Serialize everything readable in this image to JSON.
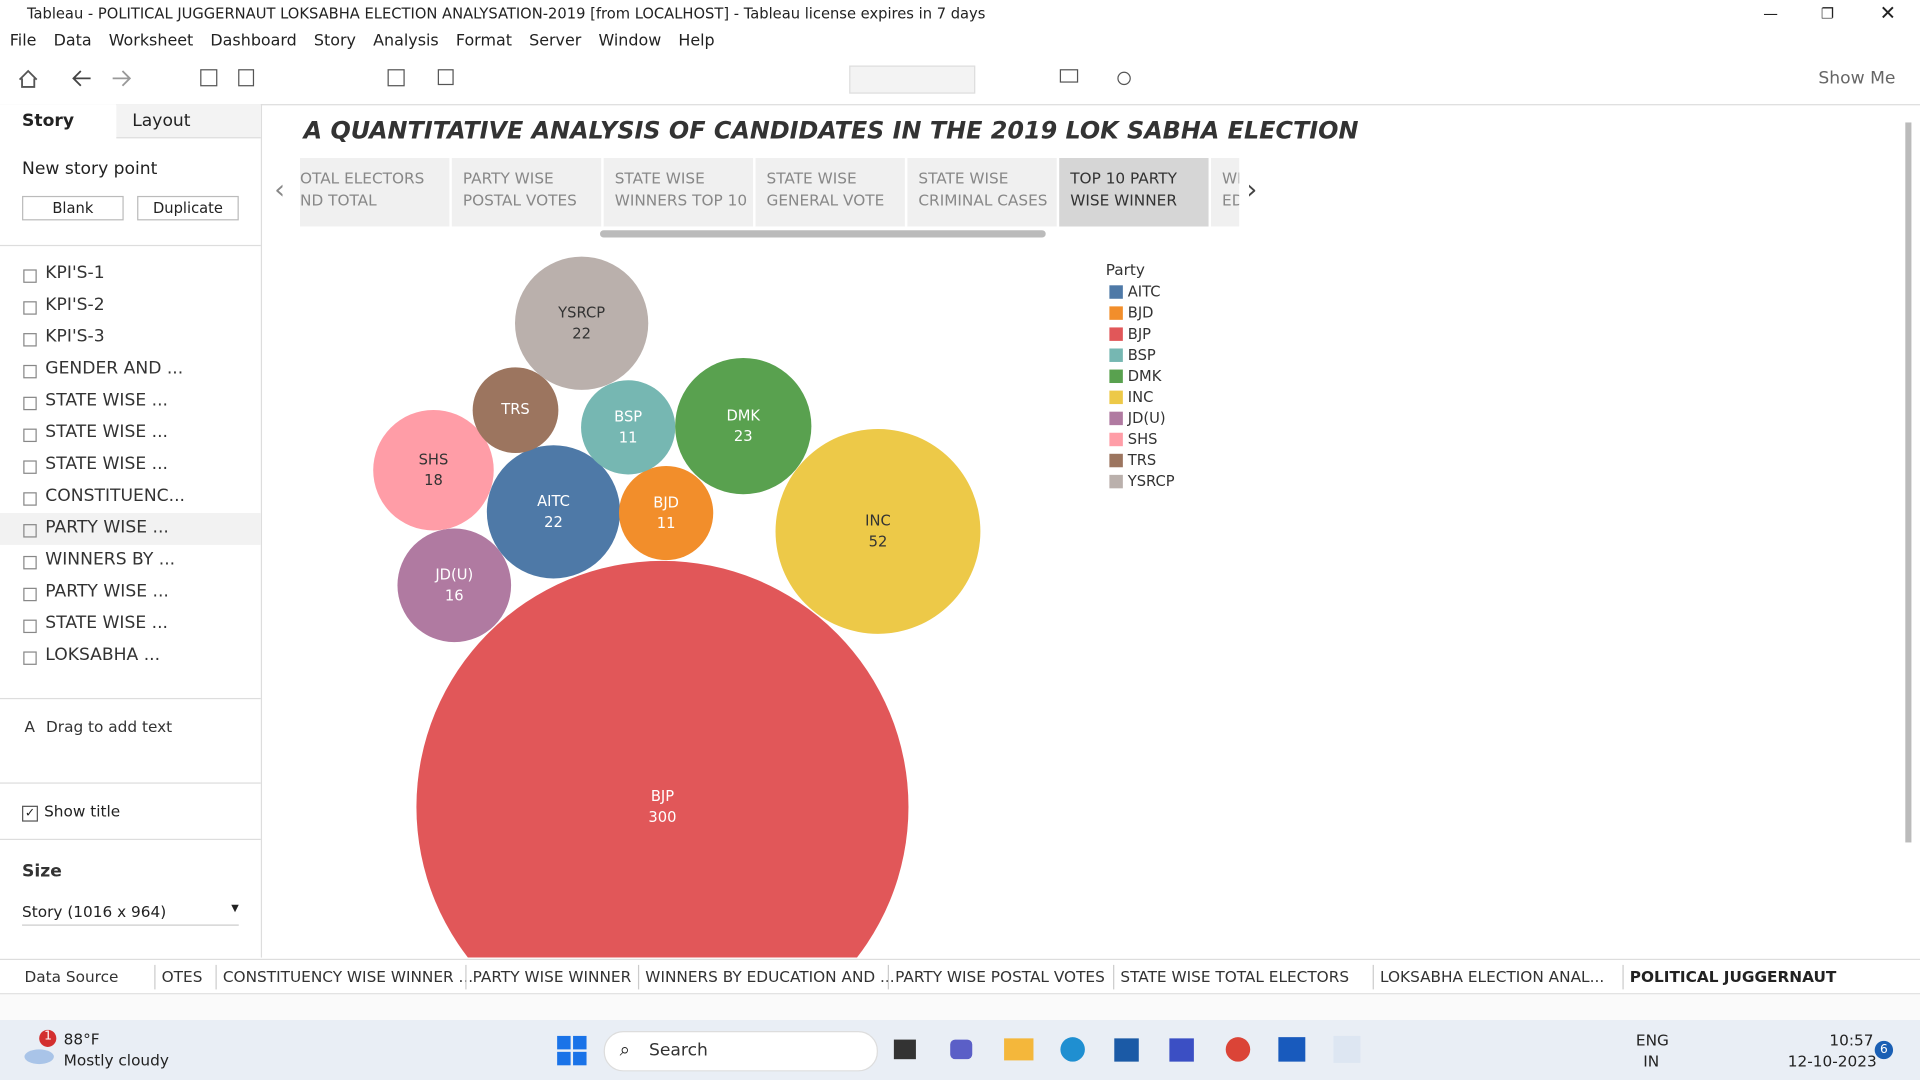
{
  "window": {
    "title": "Tableau - POLITICAL JUGGERNAUT LOKSABHA ELECTION ANALYSATION-2019 [from LOCALHOST] - Tableau license expires in 7 days"
  },
  "menu": [
    "File",
    "Data",
    "Worksheet",
    "Dashboard",
    "Story",
    "Analysis",
    "Format",
    "Server",
    "Window",
    "Help"
  ],
  "toolbar": {
    "show_me": "Show Me"
  },
  "story_panel": {
    "tabs": [
      "Story",
      "Layout"
    ],
    "new_story_point": "New story point",
    "buttons": [
      "Blank",
      "Duplicate"
    ],
    "sheets": [
      "KPI'S-1",
      "KPI'S-2",
      "KPI'S-3",
      "GENDER AND ...",
      "STATE WISE ...",
      "STATE WISE ...",
      "STATE WISE ...",
      "CONSTITUENC...",
      "PARTY WISE ...",
      "WINNERS BY ...",
      "PARTY WISE ...",
      "STATE WISE ...",
      "LOKSABHA ..."
    ],
    "drag_text": "Drag to add text",
    "show_title": "Show title",
    "size_heading": "Size",
    "size_value": "Story (1016 x 964)"
  },
  "story": {
    "title": "A QUANTITATIVE ANALYSIS OF CANDIDATES IN THE 2019 LOK SABHA ELECTION",
    "points": [
      [
        "OTAL ELECTORS",
        "ND TOTAL"
      ],
      [
        "PARTY WISE",
        "POSTAL VOTES"
      ],
      [
        "STATE WISE",
        "WINNERS TOP 10"
      ],
      [
        "STATE WISE",
        "GENERAL VOTE"
      ],
      [
        "STATE WISE",
        "CRIMINAL CASES"
      ],
      [
        "TOP 10 PARTY",
        "WISE WINNER"
      ],
      [
        "WINN",
        "EDUC"
      ]
    ]
  },
  "chart_data": {
    "type": "bubble",
    "legend_title": "Party",
    "categories": [
      "AITC",
      "BJD",
      "BJP",
      "BSP",
      "DMK",
      "INC",
      "JD(U)",
      "SHS",
      "TRS",
      "YSRCP"
    ],
    "values": [
      22,
      11,
      300,
      11,
      23,
      52,
      16,
      18,
      null,
      22
    ],
    "colors": [
      "#4e79a7",
      "#f28e2b",
      "#e15759",
      "#76b7b2",
      "#59a14f",
      "#edc948",
      "#b07aa1",
      "#ff9da7",
      "#9c755f",
      "#bab0ac"
    ]
  },
  "bottom_tabs": [
    "Data Source",
    "OTES",
    "CONSTITUENCY WISE WINNER ...",
    "PARTY WISE WINNER",
    "WINNERS BY EDUCATION AND ...",
    "PARTY WISE POSTAL VOTES",
    "STATE WISE TOTAL ELECTORS",
    "LOKSABHA ELECTION ANAL...",
    "POLITICAL JUGGERNAUT"
  ],
  "taskbar": {
    "weather_badge": "1",
    "temperature": "88°F",
    "weather": "Mostly cloudy",
    "search": "Search",
    "lang": [
      "ENG",
      "IN"
    ],
    "time": "10:57",
    "date": "12-10-2023",
    "notifications": "6"
  }
}
